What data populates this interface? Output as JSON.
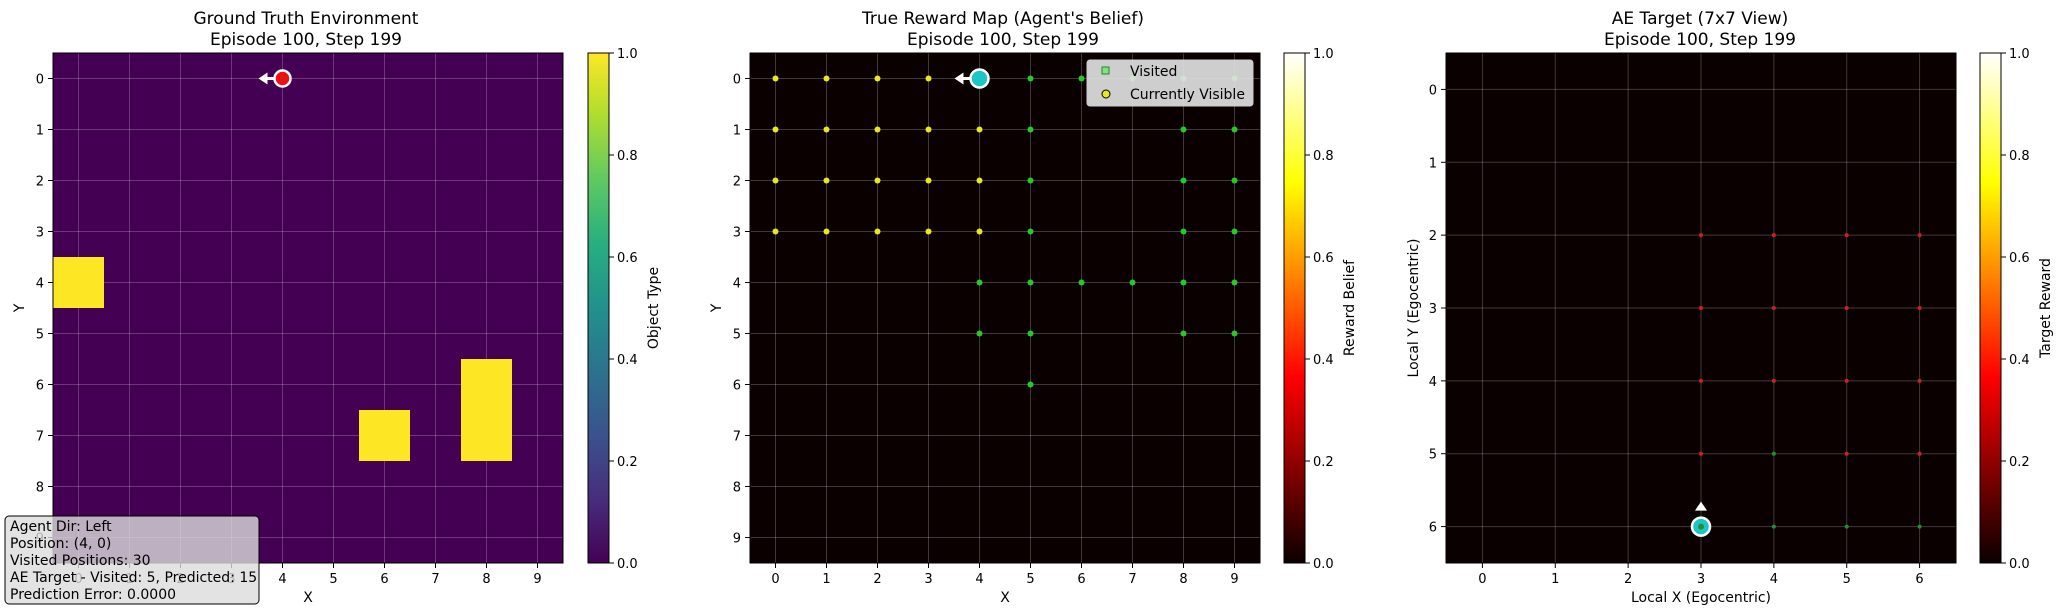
{
  "chart_data": [
    {
      "type": "heatmap",
      "title_lines": [
        "Ground Truth Environment",
        "Episode 100, Step 199"
      ],
      "xlabel": "X",
      "ylabel": "Y",
      "x_ticks": [
        "0",
        "1",
        "2",
        "3",
        "4",
        "5",
        "6",
        "7",
        "8",
        "9"
      ],
      "y_ticks": [
        "0",
        "1",
        "2",
        "3",
        "4",
        "5",
        "6",
        "7",
        "8",
        "9"
      ],
      "grid_size": 10,
      "colormap": "viridis",
      "background_value": 0.0,
      "objects": [
        {
          "x": 0,
          "y": 4,
          "value": 1.0
        },
        {
          "x": 6,
          "y": 7,
          "value": 1.0
        },
        {
          "x": 8,
          "y": 6,
          "value": 1.0
        },
        {
          "x": 8,
          "y": 7,
          "value": 1.0
        }
      ],
      "agent": {
        "x": 4,
        "y": 0,
        "direction": "left",
        "color": "#ee1111"
      },
      "colorbar": {
        "label": "Object Type",
        "min": 0.0,
        "max": 1.0,
        "ticks": [
          "0.0",
          "0.2",
          "0.4",
          "0.6",
          "0.8",
          "1.0"
        ]
      },
      "info_box": {
        "lines": [
          "Agent Dir: Left",
          "Position: (4, 0)",
          "Visited Positions: 30",
          "AE Target - Visited: 5, Predicted: 15",
          "Prediction Error: 0.0000"
        ]
      }
    },
    {
      "type": "heatmap",
      "title_lines": [
        "True Reward Map (Agent's Belief)",
        "Episode 100, Step 199"
      ],
      "xlabel": "X",
      "ylabel": "Y",
      "x_ticks": [
        "0",
        "1",
        "2",
        "3",
        "4",
        "5",
        "6",
        "7",
        "8",
        "9"
      ],
      "y_ticks": [
        "0",
        "1",
        "2",
        "3",
        "4",
        "5",
        "6",
        "7",
        "8",
        "9"
      ],
      "grid_size": 10,
      "colormap": "hot",
      "background_value": 0.0,
      "visited_points": [
        [
          5,
          0
        ],
        [
          6,
          0
        ],
        [
          7,
          0
        ],
        [
          8,
          0
        ],
        [
          9,
          0
        ],
        [
          5,
          1
        ],
        [
          8,
          1
        ],
        [
          9,
          1
        ],
        [
          5,
          2
        ],
        [
          8,
          2
        ],
        [
          9,
          2
        ],
        [
          5,
          3
        ],
        [
          8,
          3
        ],
        [
          9,
          3
        ],
        [
          4,
          4
        ],
        [
          5,
          4
        ],
        [
          6,
          4
        ],
        [
          7,
          4
        ],
        [
          8,
          4
        ],
        [
          9,
          4
        ],
        [
          4,
          5
        ],
        [
          5,
          5
        ],
        [
          8,
          5
        ],
        [
          9,
          5
        ],
        [
          5,
          6
        ]
      ],
      "visible_points": [
        [
          0,
          0
        ],
        [
          1,
          0
        ],
        [
          2,
          0
        ],
        [
          3,
          0
        ],
        [
          0,
          1
        ],
        [
          1,
          1
        ],
        [
          2,
          1
        ],
        [
          3,
          1
        ],
        [
          4,
          1
        ],
        [
          0,
          2
        ],
        [
          1,
          2
        ],
        [
          2,
          2
        ],
        [
          3,
          2
        ],
        [
          4,
          2
        ],
        [
          0,
          3
        ],
        [
          1,
          3
        ],
        [
          2,
          3
        ],
        [
          3,
          3
        ],
        [
          4,
          3
        ]
      ],
      "agent": {
        "x": 4,
        "y": 0,
        "direction": "left",
        "color": "#1cc6c6"
      },
      "legend": {
        "position": "top-right",
        "entries": [
          {
            "label": "Visited",
            "marker": "square",
            "color": "#88dd88"
          },
          {
            "label": "Currently Visible",
            "marker": "circle",
            "color": "#e8e81a"
          }
        ]
      },
      "colorbar": {
        "label": "Reward Belief",
        "min": 0.0,
        "max": 1.0,
        "ticks": [
          "0.0",
          "0.2",
          "0.4",
          "0.6",
          "0.8",
          "1.0"
        ]
      }
    },
    {
      "type": "heatmap",
      "title_lines": [
        "AE Target (7x7 View)",
        "Episode 100, Step 199"
      ],
      "xlabel": "Local X (Egocentric)",
      "ylabel": "Local Y (Egocentric)",
      "x_ticks": [
        "0",
        "1",
        "2",
        "3",
        "4",
        "5",
        "6"
      ],
      "y_ticks": [
        "0",
        "1",
        "2",
        "3",
        "4",
        "5",
        "6"
      ],
      "grid_size": 7,
      "colormap": "hot",
      "background_value": 0.0,
      "red_points": [
        [
          3,
          2
        ],
        [
          4,
          2
        ],
        [
          5,
          2
        ],
        [
          6,
          2
        ],
        [
          3,
          3
        ],
        [
          4,
          3
        ],
        [
          5,
          3
        ],
        [
          6,
          3
        ],
        [
          3,
          4
        ],
        [
          4,
          4
        ],
        [
          5,
          4
        ],
        [
          6,
          4
        ],
        [
          3,
          5
        ],
        [
          5,
          5
        ],
        [
          6,
          5
        ]
      ],
      "green_points": [
        [
          4,
          5
        ],
        [
          4,
          6
        ],
        [
          5,
          6
        ],
        [
          6,
          6
        ]
      ],
      "agent": {
        "x": 3,
        "y": 6,
        "direction": "up",
        "color": "#1cc6c6"
      },
      "colorbar": {
        "label": "Target Reward",
        "min": 0.0,
        "max": 1.0,
        "ticks": [
          "0.0",
          "0.2",
          "0.4",
          "0.6",
          "0.8",
          "1.0"
        ]
      }
    }
  ]
}
